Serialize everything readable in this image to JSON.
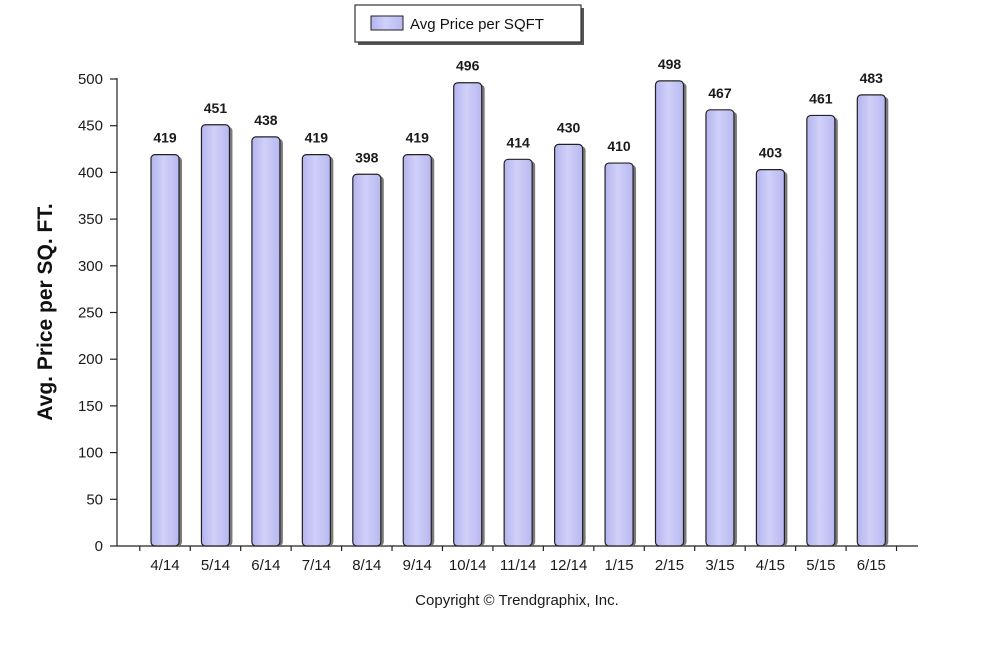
{
  "chart_data": {
    "type": "bar",
    "categories": [
      "4/14",
      "5/14",
      "6/14",
      "7/14",
      "8/14",
      "9/14",
      "10/14",
      "11/14",
      "12/14",
      "1/15",
      "2/15",
      "3/15",
      "4/15",
      "5/15",
      "6/15"
    ],
    "series": [
      {
        "name": "Avg Price per SQFT",
        "values": [
          419,
          451,
          438,
          419,
          398,
          419,
          496,
          414,
          430,
          410,
          498,
          467,
          403,
          461,
          483
        ]
      }
    ],
    "ylabel": "Avg. Price per SQ. FT.",
    "xlabel": "",
    "ylim": [
      0,
      500
    ],
    "yticks": [
      0,
      50,
      100,
      150,
      200,
      250,
      300,
      350,
      400,
      450,
      500
    ],
    "grid": false,
    "legend_position": "top-center",
    "colors": {
      "bar_fill": "#c5c5f5",
      "bar_stroke": "#222222",
      "axis": "#222222"
    }
  },
  "footer": {
    "copyright": "Copyright © Trendgraphix, Inc."
  }
}
